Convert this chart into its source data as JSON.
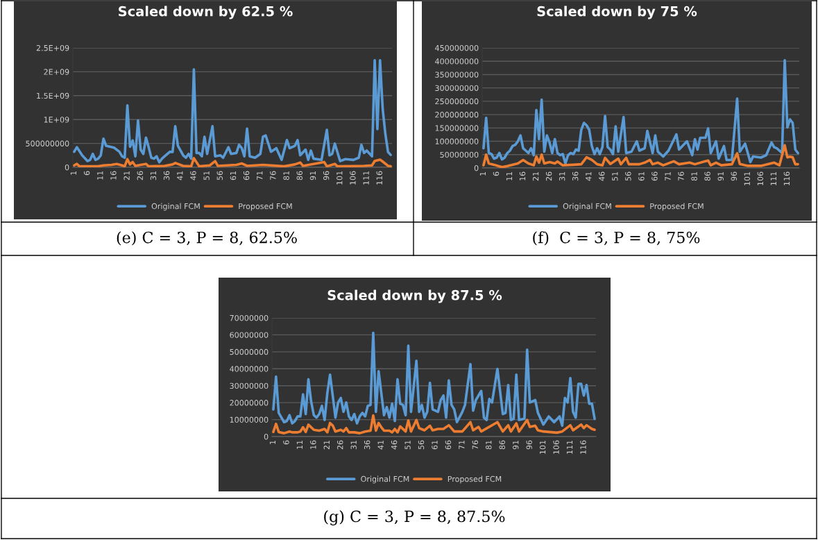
{
  "chart_data": [
    {
      "type": "line",
      "title": "Scaled down by 62.5 %",
      "annotations": [
        "(e) C = 3, P = 8, 62.5%"
      ],
      "xlim": [
        0.5,
        120.5
      ],
      "xticks": [
        1,
        6,
        11,
        16,
        21,
        26,
        31,
        36,
        41,
        46,
        51,
        56,
        61,
        66,
        71,
        76,
        81,
        86,
        91,
        96,
        101,
        106,
        111,
        116
      ],
      "ylim": [
        0,
        2500000000
      ],
      "yticks": [
        0,
        500000000,
        {
          "value": 1000000000,
          "label": "1E+09"
        },
        {
          "value": 1500000000,
          "label": "1.5E+09"
        },
        {
          "value": 2000000000,
          "label": "2E+09"
        },
        {
          "value": 2500000000,
          "label": "2.5E+09"
        }
      ],
      "grid": "y",
      "legend": "bottom",
      "line_style": "solid",
      "marker": "none",
      "series": [
        {
          "name": "Original FCM",
          "color": "#5b9bd5",
          "x": [
            1,
            2,
            4,
            6,
            7,
            8,
            9,
            10,
            11,
            12,
            13,
            16,
            18,
            19,
            20,
            21,
            22,
            23,
            24,
            25,
            26,
            27,
            28,
            29,
            30,
            31,
            32,
            33,
            34,
            35,
            37,
            38,
            39,
            40,
            41,
            42,
            43,
            44,
            45,
            46,
            47,
            48,
            49,
            50,
            51,
            53,
            54,
            56,
            57,
            59,
            60,
            62,
            63,
            64,
            65,
            66,
            67,
            69,
            71,
            72,
            73,
            75,
            77,
            79,
            81,
            82,
            84,
            85,
            86,
            88,
            89,
            90,
            91,
            94,
            96,
            97,
            98,
            99,
            101,
            103,
            106,
            108,
            109,
            110,
            111,
            113,
            114,
            115,
            116,
            117,
            118,
            119,
            120
          ],
          "values": [
            325000000.0,
            420000000.0,
            250000000.0,
            130000000.0,
            155000000.0,
            280000000.0,
            155000000.0,
            180000000.0,
            250000000.0,
            600000000.0,
            450000000.0,
            410000000.0,
            325000000.0,
            230000000.0,
            200000000.0,
            1295000000.0,
            430000000.0,
            560000000.0,
            230000000.0,
            980000000.0,
            370000000.0,
            280000000.0,
            620000000.0,
            420000000.0,
            200000000.0,
            180000000.0,
            230000000.0,
            105000000.0,
            180000000.0,
            230000000.0,
            325000000.0,
            320000000.0,
            860000000.0,
            450000000.0,
            350000000.0,
            250000000.0,
            200000000.0,
            280000000.0,
            180000000.0,
            2050000000.0,
            300000000.0,
            300000000.0,
            230000000.0,
            640000000.0,
            280000000.0,
            860000000.0,
            230000000.0,
            250000000.0,
            200000000.0,
            420000000.0,
            280000000.0,
            300000000.0,
            470000000.0,
            400000000.0,
            230000000.0,
            810000000.0,
            230000000.0,
            200000000.0,
            280000000.0,
            640000000.0,
            665000000.0,
            325000000.0,
            400000000.0,
            155000000.0,
            570000000.0,
            400000000.0,
            450000000.0,
            570000000.0,
            250000000.0,
            370000000.0,
            155000000.0,
            350000000.0,
            180000000.0,
            155000000.0,
            785000000.0,
            250000000.0,
            280000000.0,
            495000000.0,
            130000000.0,
            170000000.0,
            155000000.0,
            200000000.0,
            470000000.0,
            300000000.0,
            350000000.0,
            230000000.0,
            2240000000.0,
            800000000.0,
            2240000000.0,
            1220000000.0,
            700000000.0,
            320000000.0,
            260000000.0
          ]
        },
        {
          "name": "Proposed FCM",
          "color": "#ed7d31",
          "x": [
            1,
            2,
            3,
            6,
            10,
            12,
            15,
            17,
            19,
            20,
            21,
            22,
            23,
            24,
            26,
            28,
            29,
            35,
            38,
            39,
            42,
            45,
            46,
            48,
            52,
            54,
            55,
            62,
            64,
            66,
            72,
            80,
            84,
            86,
            87,
            95,
            96,
            99,
            100,
            110,
            113,
            114,
            116,
            117,
            119,
            120
          ],
          "values": [
            40000000.0,
            70000000.0,
            20000000.0,
            20000000.0,
            20000000.0,
            40000000.0,
            50000000.0,
            70000000.0,
            40000000.0,
            20000000.0,
            170000000.0,
            60000000.0,
            110000000.0,
            30000000.0,
            50000000.0,
            70000000.0,
            20000000.0,
            30000000.0,
            60000000.0,
            90000000.0,
            30000000.0,
            20000000.0,
            190000000.0,
            20000000.0,
            40000000.0,
            130000000.0,
            30000000.0,
            50000000.0,
            80000000.0,
            30000000.0,
            50000000.0,
            20000000.0,
            60000000.0,
            100000000.0,
            30000000.0,
            110000000.0,
            20000000.0,
            70000000.0,
            20000000.0,
            30000000.0,
            40000000.0,
            130000000.0,
            160000000.0,
            120000000.0,
            30000000.0,
            20000000.0
          ]
        }
      ]
    },
    {
      "type": "line",
      "title": "Scaled down by 75 %",
      "annotations": [
        "(f)  C = 3, P = 8, 75%"
      ],
      "xlim": [
        0.5,
        120.5
      ],
      "xticks": [
        1,
        6,
        11,
        16,
        21,
        26,
        31,
        36,
        41,
        46,
        51,
        56,
        61,
        66,
        71,
        76,
        81,
        86,
        91,
        96,
        101,
        106,
        111,
        116
      ],
      "ylim": [
        0,
        450000000
      ],
      "yticks": [
        0,
        50000000,
        100000000,
        150000000,
        200000000,
        250000000,
        300000000,
        350000000,
        400000000,
        450000000
      ],
      "grid": "y",
      "legend": "bottom",
      "line_style": "solid",
      "marker": "none",
      "series": [
        {
          "name": "Original FCM",
          "color": "#5b9bd5",
          "x": [
            1,
            2,
            3,
            4,
            5,
            6,
            7,
            8,
            9,
            10,
            11,
            12,
            13,
            14,
            15,
            16,
            17,
            18,
            19,
            20,
            21,
            22,
            23,
            24,
            25,
            26,
            27,
            28,
            29,
            30,
            31,
            32,
            33,
            34,
            35,
            36,
            37,
            38,
            39,
            40,
            41,
            42,
            43,
            44,
            45,
            46,
            47,
            48,
            49,
            50,
            51,
            52,
            54,
            55,
            57,
            59,
            60,
            62,
            63,
            65,
            66,
            67,
            69,
            71,
            74,
            75,
            78,
            80,
            81,
            82,
            83,
            85,
            86,
            87,
            89,
            90,
            92,
            93,
            95,
            97,
            98,
            100,
            102,
            103,
            106,
            108,
            110,
            111,
            112,
            114,
            115,
            116,
            117,
            118,
            119,
            120
          ],
          "values": [
            74000000.0,
            188000000.0,
            56000000.0,
            52000000.0,
            35000000.0,
            39000000.0,
            56000000.0,
            32000000.0,
            39000000.0,
            56000000.0,
            65000000.0,
            82000000.0,
            87000000.0,
            100000000.0,
            122000000.0,
            74000000.0,
            65000000.0,
            56000000.0,
            74000000.0,
            48000000.0,
            217000000.0,
            108000000.0,
            256000000.0,
            61000000.0,
            122000000.0,
            95000000.0,
            56000000.0,
            108000000.0,
            56000000.0,
            48000000.0,
            52000000.0,
            17000000.0,
            48000000.0,
            56000000.0,
            52000000.0,
            69000000.0,
            65000000.0,
            143000000.0,
            169000000.0,
            160000000.0,
            143000000.0,
            82000000.0,
            52000000.0,
            74000000.0,
            52000000.0,
            78000000.0,
            195000000.0,
            78000000.0,
            69000000.0,
            52000000.0,
            156000000.0,
            61000000.0,
            191000000.0,
            56000000.0,
            61000000.0,
            100000000.0,
            65000000.0,
            74000000.0,
            139000000.0,
            56000000.0,
            122000000.0,
            61000000.0,
            43000000.0,
            65000000.0,
            126000000.0,
            69000000.0,
            100000000.0,
            48000000.0,
            108000000.0,
            69000000.0,
            113000000.0,
            113000000.0,
            148000000.0,
            56000000.0,
            100000000.0,
            35000000.0,
            82000000.0,
            30000000.0,
            30000000.0,
            260000000.0,
            61000000.0,
            91000000.0,
            22000000.0,
            43000000.0,
            39000000.0,
            48000000.0,
            95000000.0,
            78000000.0,
            74000000.0,
            56000000.0,
            404000000.0,
            152000000.0,
            182000000.0,
            169000000.0,
            69000000.0,
            56000000.0
          ]
        },
        {
          "name": "Proposed FCM",
          "color": "#ed7d31",
          "x": [
            1,
            2,
            3,
            5,
            8,
            10,
            14,
            16,
            18,
            20,
            21,
            22,
            23,
            24,
            26,
            28,
            29,
            31,
            35,
            38,
            40,
            42,
            44,
            46,
            47,
            49,
            52,
            53,
            55,
            56,
            60,
            62,
            64,
            65,
            67,
            69,
            73,
            75,
            79,
            81,
            86,
            87,
            89,
            91,
            95,
            97,
            98,
            101,
            106,
            111,
            113,
            115,
            116,
            117,
            118,
            119,
            120
          ],
          "values": [
            10000000.0,
            50000000.0,
            17000000.0,
            12000000.0,
            3000000.0,
            7000000.0,
            17000000.0,
            30000000.0,
            17000000.0,
            10000000.0,
            43000000.0,
            20000000.0,
            50000000.0,
            17000000.0,
            22000000.0,
            17000000.0,
            24000000.0,
            10000000.0,
            12000000.0,
            14000000.0,
            40000000.0,
            30000000.0,
            14000000.0,
            10000000.0,
            38000000.0,
            15000000.0,
            35000000.0,
            14000000.0,
            38000000.0,
            14000000.0,
            14000000.0,
            20000000.0,
            30000000.0,
            14000000.0,
            20000000.0,
            10000000.0,
            25000000.0,
            14000000.0,
            20000000.0,
            14000000.0,
            28000000.0,
            10000000.0,
            20000000.0,
            10000000.0,
            14000000.0,
            55000000.0,
            15000000.0,
            8000000.0,
            8000000.0,
            20000000.0,
            10000000.0,
            85000000.0,
            40000000.0,
            42000000.0,
            40000000.0,
            14000000.0,
            14000000.0
          ]
        }
      ]
    },
    {
      "type": "line",
      "title": "Scaled down by 87.5 %",
      "annotations": [
        "(g) C = 3, P = 8, 87.5%"
      ],
      "xlim": [
        0.5,
        120.5
      ],
      "xticks": [
        1,
        6,
        11,
        16,
        21,
        26,
        31,
        36,
        41,
        46,
        51,
        56,
        61,
        66,
        71,
        76,
        81,
        86,
        91,
        96,
        101,
        106,
        111,
        116
      ],
      "ylim": [
        0,
        70000000
      ],
      "yticks": [
        0,
        10000000,
        20000000,
        30000000,
        40000000,
        50000000,
        60000000,
        70000000
      ],
      "grid": "y",
      "legend": "bottom",
      "line_style": "solid",
      "marker": "none",
      "series": [
        {
          "name": "Original FCM",
          "color": "#5b9bd5",
          "x": [
            1,
            2,
            3,
            4,
            5,
            6,
            7,
            8,
            9,
            10,
            11,
            12,
            13,
            14,
            15,
            16,
            17,
            18,
            19,
            20,
            21,
            22,
            23,
            24,
            25,
            26,
            27,
            28,
            29,
            30,
            31,
            32,
            33,
            34,
            35,
            36,
            37,
            38,
            39,
            40,
            41,
            42,
            43,
            44,
            45,
            46,
            47,
            48,
            49,
            50,
            51,
            52,
            54,
            55,
            56,
            57,
            58,
            59,
            60,
            62,
            63,
            64,
            65,
            66,
            67,
            68,
            69,
            71,
            72,
            74,
            75,
            76,
            78,
            79,
            80,
            81,
            82,
            84,
            86,
            87,
            88,
            89,
            90,
            91,
            92,
            94,
            95,
            96,
            98,
            99,
            101,
            103,
            105,
            107,
            108,
            109,
            110,
            111,
            112,
            113,
            114,
            115,
            116,
            117,
            118,
            119,
            120
          ],
          "values": [
            16000000.0,
            35400000.0,
            14000000.0,
            11200000.0,
            8500000.0,
            9200000.0,
            12600000.0,
            7800000.0,
            9200000.0,
            11900000.0,
            11900000.0,
            24900000.0,
            13300000.0,
            33800000.0,
            20800000.0,
            12600000.0,
            11200000.0,
            13300000.0,
            18100000.0,
            9800000.0,
            25600000.0,
            36500000.0,
            24200000.0,
            11200000.0,
            20100000.0,
            22800000.0,
            14600000.0,
            20100000.0,
            11900000.0,
            9800000.0,
            13300000.0,
            7800000.0,
            11900000.0,
            14000000.0,
            11900000.0,
            18100000.0,
            18700000.0,
            61200000.0,
            14600000.0,
            38600000.0,
            25600000.0,
            12600000.0,
            17400000.0,
            11200000.0,
            19400000.0,
            9200000.0,
            33800000.0,
            19400000.0,
            18700000.0,
            12600000.0,
            53600000.0,
            14600000.0,
            44700000.0,
            14600000.0,
            18700000.0,
            11200000.0,
            14600000.0,
            31700000.0,
            16000000.0,
            14600000.0,
            21500000.0,
            24200000.0,
            11200000.0,
            33100000.0,
            18700000.0,
            16000000.0,
            8500000.0,
            14600000.0,
            18700000.0,
            42700000.0,
            15300000.0,
            21500000.0,
            26900000.0,
            11200000.0,
            9800000.0,
            22200000.0,
            20100000.0,
            39900000.0,
            13300000.0,
            14000000.0,
            30400000.0,
            9800000.0,
            10500000.0,
            36500000.0,
            9800000.0,
            10500000.0,
            51200000.0,
            20100000.0,
            21500000.0,
            14000000.0,
            7100000.0,
            11900000.0,
            8500000.0,
            11900000.0,
            6400000.0,
            22800000.0,
            20100000.0,
            34500000.0,
            14600000.0,
            11200000.0,
            31100000.0,
            31100000.0,
            24200000.0,
            30400000.0,
            19400000.0,
            19400000.0,
            10500000.0
          ]
        },
        {
          "name": "Proposed FCM",
          "color": "#ed7d31",
          "x": [
            1,
            2,
            3,
            5,
            7,
            8,
            10,
            11,
            12,
            13,
            14,
            16,
            18,
            20,
            21,
            22,
            23,
            24,
            26,
            27,
            28,
            29,
            31,
            33,
            35,
            37,
            38,
            39,
            40,
            41,
            42,
            44,
            45,
            46,
            47,
            48,
            50,
            51,
            52,
            54,
            55,
            57,
            59,
            60,
            62,
            64,
            66,
            68,
            71,
            74,
            75,
            77,
            78,
            84,
            86,
            88,
            89,
            91,
            92,
            95,
            96,
            98,
            99,
            101,
            106,
            108,
            111,
            112,
            115,
            116,
            117,
            119,
            120
          ],
          "values": [
            2700000.0,
            7500000.0,
            2700000.0,
            2000000.0,
            3000000.0,
            2500000.0,
            2500000.0,
            3000000.0,
            5500000.0,
            2700000.0,
            7000000.0,
            4000000.0,
            3500000.0,
            4500000.0,
            2500000.0,
            8000000.0,
            6500000.0,
            3000000.0,
            4000000.0,
            3000000.0,
            5000000.0,
            2500000.0,
            2500000.0,
            2000000.0,
            3000000.0,
            3500000.0,
            12500000.0,
            3500000.0,
            8000000.0,
            5500000.0,
            3500000.0,
            3500000.0,
            2500000.0,
            4500000.0,
            2500000.0,
            6000000.0,
            3000000.0,
            9500000.0,
            3000000.0,
            9800000.0,
            5000000.0,
            3700000.0,
            6400000.0,
            3700000.0,
            4500000.0,
            4500000.0,
            6700000.0,
            3000000.0,
            3000000.0,
            8500000.0,
            3700000.0,
            5700000.0,
            3000000.0,
            8500000.0,
            3000000.0,
            6700000.0,
            3000000.0,
            7800000.0,
            3000000.0,
            9800000.0,
            5700000.0,
            6400000.0,
            3700000.0,
            3000000.0,
            2300000.0,
            3000000.0,
            6700000.0,
            3700000.0,
            7100000.0,
            5000000.0,
            6700000.0,
            4500000.0,
            4000000.0
          ]
        }
      ]
    }
  ]
}
